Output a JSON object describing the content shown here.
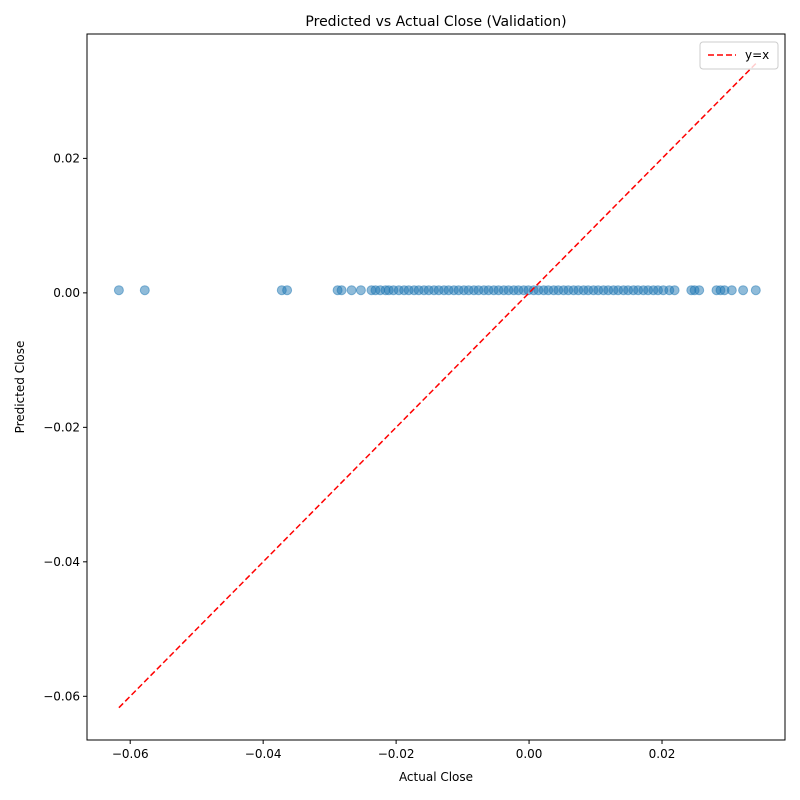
{
  "chart_data": {
    "type": "scatter",
    "title": "Predicted vs Actual Close (Validation)",
    "xlabel": "Actual Close",
    "ylabel": "Predicted Close",
    "xlim": [
      -0.0665,
      0.0385
    ],
    "ylim": [
      -0.0665,
      0.0385
    ],
    "xticks": [
      {
        "value": -0.06,
        "label": "−0.06"
      },
      {
        "value": -0.04,
        "label": "−0.04"
      },
      {
        "value": -0.02,
        "label": "−0.02"
      },
      {
        "value": 0.0,
        "label": "0.00"
      },
      {
        "value": 0.02,
        "label": "0.02"
      }
    ],
    "yticks": [
      {
        "value": -0.06,
        "label": "−0.06"
      },
      {
        "value": -0.04,
        "label": "−0.04"
      },
      {
        "value": -0.02,
        "label": "−0.02"
      },
      {
        "value": 0.0,
        "label": "0.00"
      },
      {
        "value": 0.02,
        "label": "0.02"
      }
    ],
    "grid": false,
    "legend": {
      "position": "upper right",
      "entries": [
        {
          "label": "y=x",
          "style": "dashed",
          "color": "#ff0000"
        }
      ]
    },
    "colors": {
      "points": "#1f77b4",
      "reference_line": "#ff0000"
    },
    "series": [
      {
        "kind": "scatter",
        "y_constant": 0.0004,
        "x": [
          -0.0617,
          -0.0578,
          -0.0372,
          -0.0364,
          -0.0288,
          -0.0282,
          -0.0267,
          -0.0253,
          -0.0237,
          -0.0231,
          -0.0224,
          -0.0216,
          -0.0211,
          -0.0204,
          -0.0196,
          -0.0188,
          -0.0181,
          -0.0173,
          -0.0166,
          -0.0158,
          -0.0151,
          -0.0143,
          -0.0136,
          -0.0128,
          -0.0121,
          -0.0113,
          -0.0106,
          -0.0098,
          -0.0091,
          -0.0083,
          -0.0076,
          -0.0068,
          -0.0061,
          -0.0053,
          -0.0046,
          -0.0038,
          -0.0031,
          -0.0023,
          -0.0016,
          -0.0008,
          -0.0001,
          0.0007,
          0.0014,
          0.0022,
          0.0029,
          0.0037,
          0.0044,
          0.0052,
          0.0059,
          0.0067,
          0.0074,
          0.0082,
          0.0089,
          0.0097,
          0.0104,
          0.0112,
          0.0119,
          0.0127,
          0.0134,
          0.0142,
          0.0149,
          0.0157,
          0.0164,
          0.0172,
          0.0179,
          0.0187,
          0.0194,
          0.0202,
          0.0211,
          0.0219,
          0.0244,
          0.0249,
          0.0256,
          0.0282,
          0.0288,
          0.0294,
          0.0305,
          0.0322,
          0.0341
        ]
      },
      {
        "kind": "line",
        "name": "y=x",
        "x": [
          -0.0617,
          0.0341
        ],
        "y": [
          -0.0617,
          0.0341
        ]
      }
    ]
  }
}
